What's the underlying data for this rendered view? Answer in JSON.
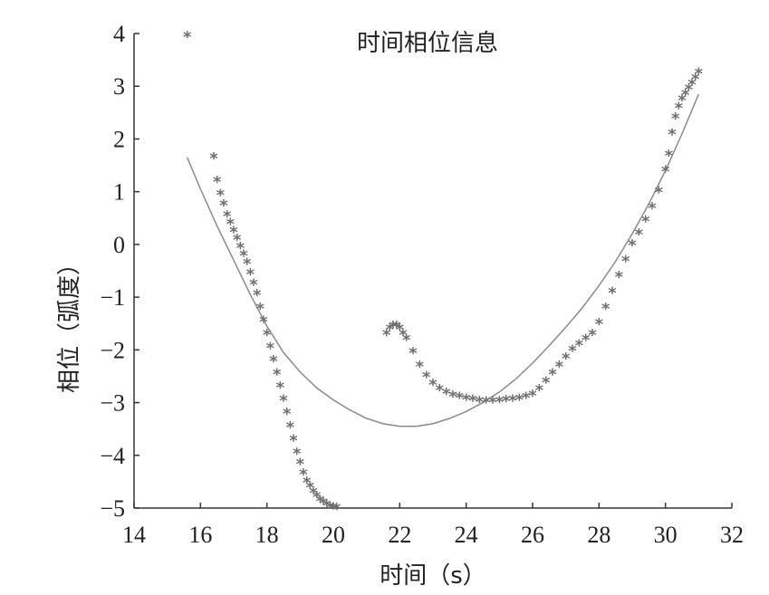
{
  "chart_data": {
    "type": "scatter",
    "title": "时间相位信息",
    "xlabel": "时间（s）",
    "ylabel": "相位（弧度）",
    "xlim": [
      14,
      32
    ],
    "ylim": [
      -5,
      4
    ],
    "xticks": [
      14,
      16,
      18,
      20,
      22,
      24,
      26,
      28,
      30,
      32
    ],
    "yticks": [
      4,
      3,
      2,
      1,
      0,
      -1,
      -2,
      -3,
      -4,
      -5
    ],
    "grid": false,
    "marker_color": "#6f6f6f",
    "line_color": "#8a8a8a",
    "series": [
      {
        "style": "line",
        "x": [
          15.6,
          16.0,
          16.5,
          17.0,
          17.5,
          18.0,
          18.5,
          19.0,
          19.5,
          20.0,
          20.5,
          21.0,
          21.5,
          22.0,
          22.5,
          23.0,
          23.5,
          24.0,
          24.5,
          25.0,
          25.5,
          26.0,
          26.5,
          27.0,
          27.5,
          28.0,
          28.5,
          29.0,
          29.5,
          30.0,
          30.5,
          31.0
        ],
        "y": [
          1.65,
          1.05,
          0.35,
          -0.3,
          -0.95,
          -1.55,
          -2.05,
          -2.42,
          -2.72,
          -2.95,
          -3.14,
          -3.3,
          -3.4,
          -3.45,
          -3.45,
          -3.4,
          -3.3,
          -3.17,
          -3.0,
          -2.8,
          -2.55,
          -2.25,
          -1.92,
          -1.57,
          -1.2,
          -0.78,
          -0.32,
          0.2,
          0.77,
          1.4,
          2.1,
          2.85
        ]
      },
      {
        "style": "marker",
        "x": [
          15.6,
          16.4,
          16.5,
          16.6,
          16.7,
          16.8,
          16.9,
          17.0,
          17.1,
          17.2,
          17.3,
          17.4,
          17.5,
          17.6,
          17.7,
          17.8,
          17.9,
          18.0,
          18.1,
          18.2,
          18.3,
          18.4,
          18.5,
          18.6,
          18.7,
          18.8,
          18.9,
          19.0,
          19.1,
          19.2,
          19.3,
          19.4,
          19.5,
          19.6,
          19.7,
          19.8,
          19.9,
          20.0,
          20.1,
          21.6,
          21.7,
          21.8,
          21.9,
          22.0,
          22.1,
          22.2,
          22.4,
          22.6,
          22.8,
          23.0,
          23.2,
          23.4,
          23.6,
          23.8,
          24.0,
          24.2,
          24.4,
          24.6,
          24.8,
          25.0,
          25.2,
          25.4,
          25.6,
          25.8,
          26.0,
          26.2,
          26.4,
          26.6,
          26.8,
          27.0,
          27.2,
          27.4,
          27.6,
          27.8,
          28.0,
          28.2,
          28.4,
          28.6,
          28.8,
          29.0,
          29.2,
          29.4,
          29.6,
          29.8,
          30.0,
          30.1,
          30.2,
          30.3,
          30.4,
          30.5,
          30.6,
          30.7,
          30.8,
          30.9,
          31.0
        ],
        "y": [
          3.95,
          1.65,
          1.2,
          0.95,
          0.75,
          0.55,
          0.4,
          0.25,
          0.1,
          -0.05,
          -0.2,
          -0.35,
          -0.55,
          -0.75,
          -0.95,
          -1.2,
          -1.45,
          -1.7,
          -1.95,
          -2.2,
          -2.45,
          -2.7,
          -2.95,
          -3.2,
          -3.45,
          -3.7,
          -3.95,
          -4.15,
          -4.35,
          -4.5,
          -4.6,
          -4.7,
          -4.78,
          -4.85,
          -4.9,
          -4.94,
          -4.97,
          -4.99,
          -5.0,
          -1.7,
          -1.6,
          -1.55,
          -1.55,
          -1.6,
          -1.7,
          -1.8,
          -2.05,
          -2.3,
          -2.5,
          -2.65,
          -2.75,
          -2.82,
          -2.87,
          -2.9,
          -2.93,
          -2.95,
          -2.97,
          -2.98,
          -2.98,
          -2.97,
          -2.96,
          -2.95,
          -2.93,
          -2.9,
          -2.85,
          -2.75,
          -2.6,
          -2.45,
          -2.3,
          -2.15,
          -2.0,
          -1.9,
          -1.8,
          -1.7,
          -1.5,
          -1.2,
          -0.9,
          -0.6,
          -0.3,
          0.0,
          0.2,
          0.45,
          0.7,
          1.0,
          1.4,
          1.7,
          2.1,
          2.4,
          2.6,
          2.75,
          2.85,
          2.95,
          3.05,
          3.15,
          3.25
        ]
      }
    ]
  }
}
